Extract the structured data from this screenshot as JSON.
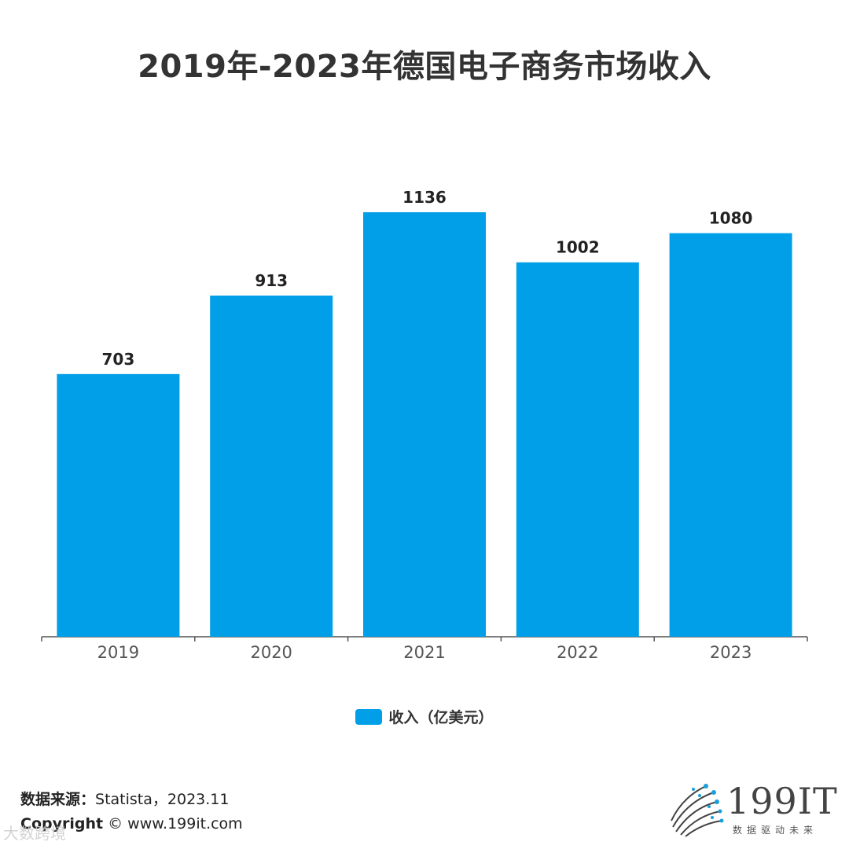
{
  "title": "2019年-2023年德国电子商务市场收入",
  "chart_data": {
    "type": "bar",
    "categories": [
      "2019",
      "2020",
      "2021",
      "2022",
      "2023"
    ],
    "series": [
      {
        "name": "收入（亿美元）",
        "values": [
          703,
          913,
          1136,
          1002,
          1080
        ]
      }
    ],
    "ylim": [
      0,
      1136
    ],
    "grid": false,
    "legend": "bottom",
    "bar_color": "#009fe8",
    "xlabel": "",
    "ylabel": ""
  },
  "legend": {
    "label": "收入（亿美元）",
    "color": "#009fe8"
  },
  "footer": {
    "source_label": "数据来源：",
    "source_text": "Statista，2023.11",
    "copyright_label": "Copyright",
    "copyright_text": "© www.199it.com"
  },
  "watermark": "大数跨境",
  "logo": {
    "text": "199IT",
    "tagline": "数据驱动未来"
  }
}
